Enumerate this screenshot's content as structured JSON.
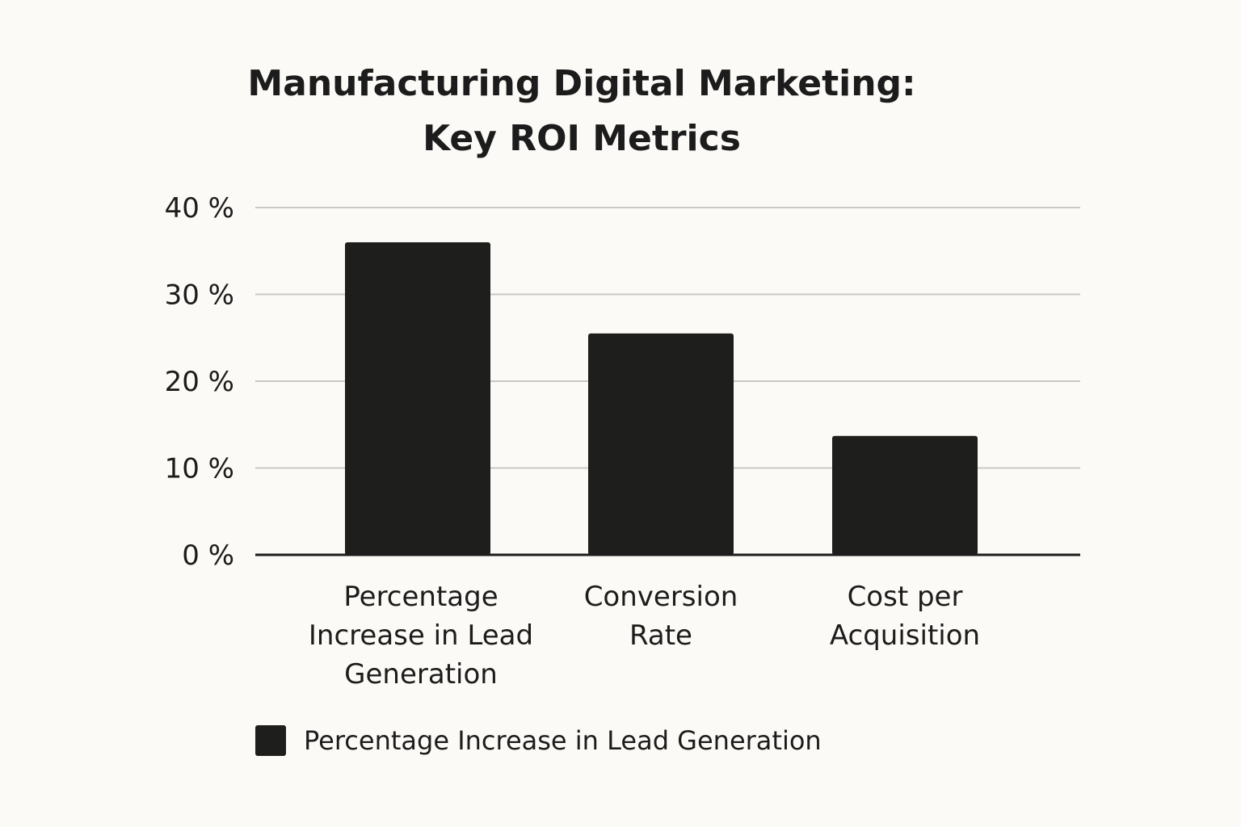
{
  "chart_data": {
    "type": "bar",
    "title_lines": [
      "Manufacturing Digital Marketing:",
      "Key ROI Metrics"
    ],
    "categories": [
      [
        "Percentage",
        "Increase in Lead",
        "Generation"
      ],
      [
        "Conversion",
        "Rate"
      ],
      [
        "Cost per",
        "Acquisition"
      ]
    ],
    "series": [
      {
        "name": "Percentage Increase in Lead Generation",
        "values": [
          36,
          25.5,
          13.7
        ]
      }
    ],
    "ylim": [
      0,
      40
    ],
    "yticks": [
      0,
      10,
      20,
      30,
      40
    ],
    "ytick_labels": [
      "0 %",
      "10 %",
      "20 %",
      "30 %",
      "40 %"
    ],
    "xlabel": "",
    "ylabel": "",
    "grid": true,
    "legend_position": "bottom-left"
  },
  "colors": {
    "bar": "#1e1f1d",
    "grid": "#c8c8c5",
    "axis": "#1c1c1c",
    "background": "#fbfaf6"
  }
}
